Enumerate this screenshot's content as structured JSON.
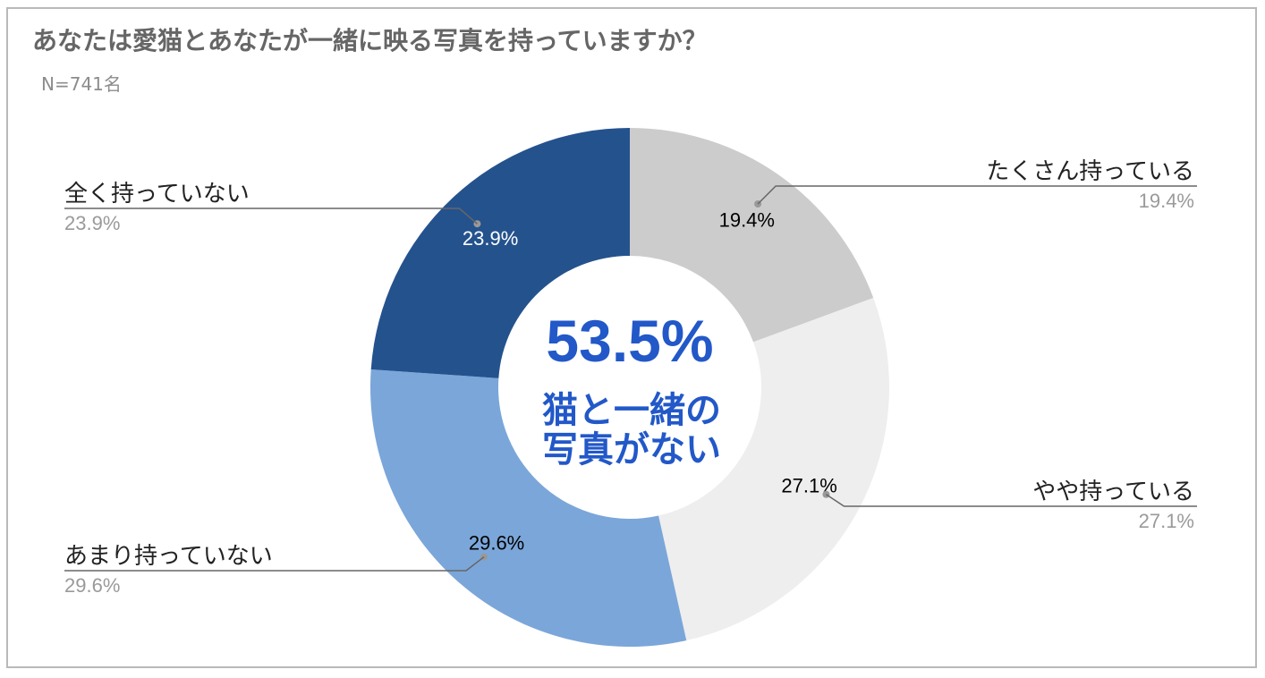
{
  "header": {
    "title": "あなたは愛猫とあなたが一緒に映る写真を持っていますか？",
    "sample_size": "N=741名"
  },
  "chart_data": {
    "type": "pie",
    "title": "あなたは愛猫とあなたが一緒に映る写真を持っていますか？",
    "subtitle": "N=741名",
    "donut": true,
    "slices": [
      {
        "label": "たくさん持っている",
        "value": 19.4,
        "value_label": "19.4%",
        "color": "#cccccc",
        "inner_text_color": "#000000"
      },
      {
        "label": "やや持っている",
        "value": 27.1,
        "value_label": "27.1%",
        "color": "#eeeeee",
        "inner_text_color": "#000000"
      },
      {
        "label": "あまり持っていない",
        "value": 29.6,
        "value_label": "29.6%",
        "color": "#7ba6d9",
        "inner_text_color": "#000000"
      },
      {
        "label": "全く持っていない",
        "value": 23.9,
        "value_label": "23.9%",
        "color": "#24528d",
        "inner_text_color": "#ffffff"
      }
    ],
    "center": {
      "value": "53.5%",
      "line1": "猫と一緒の",
      "line2": "写真がない",
      "color": "#2258c8"
    }
  }
}
